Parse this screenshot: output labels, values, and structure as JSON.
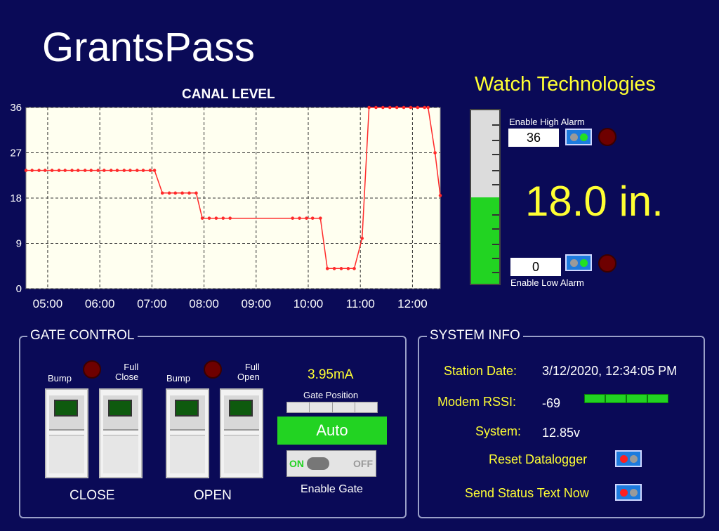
{
  "header": {
    "site_name": "GrantsPass",
    "company": "Watch Technologies"
  },
  "chart_data": {
    "type": "line",
    "title": "CANAL LEVEL",
    "x_ticks": [
      "05:00",
      "06:00",
      "07:00",
      "08:00",
      "09:00",
      "10:00",
      "11:00",
      "12:00"
    ],
    "y_ticks": [
      "0",
      "9",
      "18",
      "27",
      "36"
    ],
    "ylim": [
      0,
      36
    ],
    "xlim": [
      "04:35",
      "12:32"
    ],
    "grid": true,
    "series_color": "#ff2a2a",
    "x": [
      "04:35",
      "04:42",
      "04:50",
      "04:57",
      "05:05",
      "05:13",
      "05:20",
      "05:28",
      "05:35",
      "05:43",
      "05:50",
      "05:58",
      "06:05",
      "06:13",
      "06:20",
      "06:28",
      "06:35",
      "06:43",
      "06:50",
      "06:58",
      "07:03",
      "07:12",
      "07:20",
      "07:27",
      "07:35",
      "07:43",
      "07:51",
      "07:58",
      "08:06",
      "08:14",
      "08:22",
      "08:30",
      "09:42",
      "09:50",
      "09:58",
      "10:05",
      "10:14",
      "10:22",
      "10:30",
      "10:38",
      "10:46",
      "10:53",
      "11:02",
      "11:10",
      "11:18",
      "11:26",
      "11:34",
      "11:42",
      "11:50",
      "11:58",
      "12:06",
      "12:14",
      "12:18",
      "12:26",
      "12:32"
    ],
    "values": [
      23.5,
      23.5,
      23.5,
      23.5,
      23.5,
      23.5,
      23.5,
      23.5,
      23.5,
      23.5,
      23.5,
      23.5,
      23.5,
      23.5,
      23.5,
      23.5,
      23.5,
      23.5,
      23.5,
      23.5,
      23.5,
      19,
      19,
      19,
      19,
      19,
      19,
      14,
      14,
      14,
      14,
      14,
      14,
      14,
      14,
      14,
      14,
      4,
      4,
      4,
      4,
      4,
      10,
      36,
      36,
      36,
      36,
      36,
      36,
      36,
      36,
      36,
      36,
      27,
      18.5
    ]
  },
  "level": {
    "value": "18.0 in.",
    "fraction": 0.5
  },
  "high_alarm": {
    "label": "Enable High Alarm",
    "setpoint": "36"
  },
  "low_alarm": {
    "label": "Enable Low Alarm",
    "setpoint": "0"
  },
  "gate_control": {
    "title": "GATE CONTROL",
    "bump_close": "Bump",
    "full_close": "Full\nClose",
    "bump_open": "Bump",
    "full_open": "Full\nOpen",
    "close_label": "CLOSE",
    "open_label": "OPEN",
    "current": "3.95mA",
    "gate_position_label": "Gate Position",
    "mode": "Auto",
    "on_label": "ON",
    "off_label": "OFF",
    "enable_gate_label": "Enable Gate"
  },
  "system_info": {
    "title": "SYSTEM INFO",
    "station_date_label": "Station Date:",
    "station_date": "3/12/2020, 12:34:05 PM",
    "rssi_label": "Modem RSSI:",
    "rssi": "-69",
    "rssi_bars": 4,
    "system_label": "System:",
    "system_voltage": "12.85v",
    "reset_label": "Reset Datalogger",
    "send_status_label": "Send Status Text Now"
  },
  "colors": {
    "background": "#0a0a57",
    "accent_yellow": "#ffff33",
    "alarm_green": "#22d322",
    "trend_red": "#ff2a2a"
  }
}
